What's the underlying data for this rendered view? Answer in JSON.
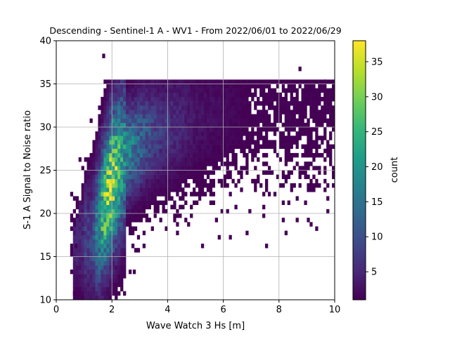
{
  "chart_data": {
    "type": "heatmap",
    "title": "Descending - Sentinel-1 A - WV1 - From 2022/06/01 to 2022/06/29",
    "xlabel": "Wave Watch 3 Hs [m]",
    "ylabel": "S-1 A Signal to Noise ratio",
    "xlim": [
      0,
      10
    ],
    "ylim": [
      10,
      40
    ],
    "xticks": [
      "0",
      "2",
      "4",
      "6",
      "8",
      "10"
    ],
    "yticks": [
      "10",
      "15",
      "20",
      "25",
      "30",
      "35",
      "40"
    ],
    "grid": true,
    "colormap": "viridis",
    "colorbar": {
      "label": "count",
      "min": 1,
      "max": 38,
      "ticks": [
        "5",
        "10",
        "15",
        "20",
        "25",
        "30",
        "35"
      ]
    },
    "density_model": {
      "description_of_cells": "2D histogram of counts; x bin ~0.1 m, y bin ~0.5",
      "main_peak": {
        "x": 1.9,
        "y": 22.5,
        "count": 38
      },
      "ridge_points": [
        {
          "x": 1.3,
          "y": 17,
          "count": 8
        },
        {
          "x": 1.7,
          "y": 20.5,
          "count": 28
        },
        {
          "x": 2.0,
          "y": 24,
          "count": 33
        },
        {
          "x": 2.5,
          "y": 27,
          "count": 18
        },
        {
          "x": 3.5,
          "y": 29.5,
          "count": 8
        },
        {
          "x": 5.0,
          "y": 31,
          "count": 3
        },
        {
          "x": 7.0,
          "y": 32.5,
          "count": 1
        }
      ],
      "outliers": [
        {
          "x": 1.65,
          "y": 38.0
        },
        {
          "x": 0.6,
          "y": 10.5
        },
        {
          "x": 9.6,
          "y": 35.0
        },
        {
          "x": 9.4,
          "y": 32.5
        },
        {
          "x": 8.7,
          "y": 36.5
        },
        {
          "x": 8.1,
          "y": 30.0
        },
        {
          "x": 9.0,
          "y": 30.5
        },
        {
          "x": 1.9,
          "y": 10.0
        },
        {
          "x": 2.6,
          "y": 13.0
        },
        {
          "x": 2.75,
          "y": 13.0
        },
        {
          "x": 2.9,
          "y": 15.5
        },
        {
          "x": 6.1,
          "y": 24.0
        },
        {
          "x": 8.2,
          "y": 33.0
        },
        {
          "x": 9.8,
          "y": 34.0
        },
        {
          "x": 7.4,
          "y": 33.5
        },
        {
          "x": 0.65,
          "y": 16.0
        },
        {
          "x": 0.7,
          "y": 19.5
        },
        {
          "x": 4.3,
          "y": 17.5
        }
      ]
    }
  }
}
